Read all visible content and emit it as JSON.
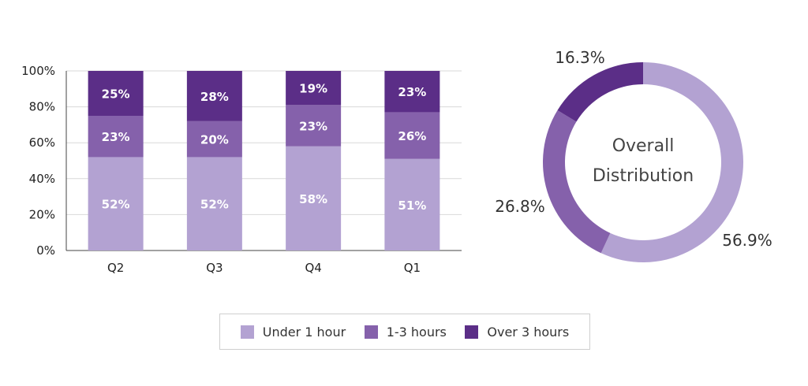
{
  "chart_data": [
    {
      "type": "bar",
      "stacked": true,
      "title": "",
      "xlabel": "",
      "ylabel": "",
      "categories": [
        "Q2",
        "Q3",
        "Q4",
        "Q1"
      ],
      "ylim": [
        0,
        100
      ],
      "yticks": [
        "0%",
        "20%",
        "40%",
        "60%",
        "80%",
        "100%"
      ],
      "grid": true,
      "series": [
        {
          "name": "Under 1 hour",
          "color": "#b3a2d2",
          "values": [
            52,
            52,
            58,
            51
          ],
          "labels": [
            "52%",
            "52%",
            "58%",
            "51%"
          ]
        },
        {
          "name": "1-3 hours",
          "color": "#8561ab",
          "values": [
            23,
            20,
            23,
            26
          ],
          "labels": [
            "23%",
            "20%",
            "23%",
            "26%"
          ]
        },
        {
          "name": "Over 3 hours",
          "color": "#5b2e87",
          "values": [
            25,
            28,
            19,
            23
          ],
          "labels": [
            "25%",
            "28%",
            "19%",
            "23%"
          ]
        }
      ]
    },
    {
      "type": "pie",
      "donut": true,
      "center_text": [
        "Overall",
        "Distribution"
      ],
      "slices": [
        {
          "name": "Under 1 hour",
          "value": 56.9,
          "label": "56.9%",
          "color": "#b3a2d2"
        },
        {
          "name": "1-3 hours",
          "value": 26.8,
          "label": "26.8%",
          "color": "#8561ab"
        },
        {
          "name": "Over 3 hours",
          "value": 16.3,
          "label": "16.3%",
          "color": "#5b2e87"
        }
      ]
    }
  ],
  "legend": {
    "placement": "bottom-center",
    "items": [
      {
        "label": "Under 1 hour",
        "color": "#b3a2d2"
      },
      {
        "label": "1-3 hours",
        "color": "#8561ab"
      },
      {
        "label": "Over 3 hours",
        "color": "#5b2e87"
      }
    ]
  }
}
